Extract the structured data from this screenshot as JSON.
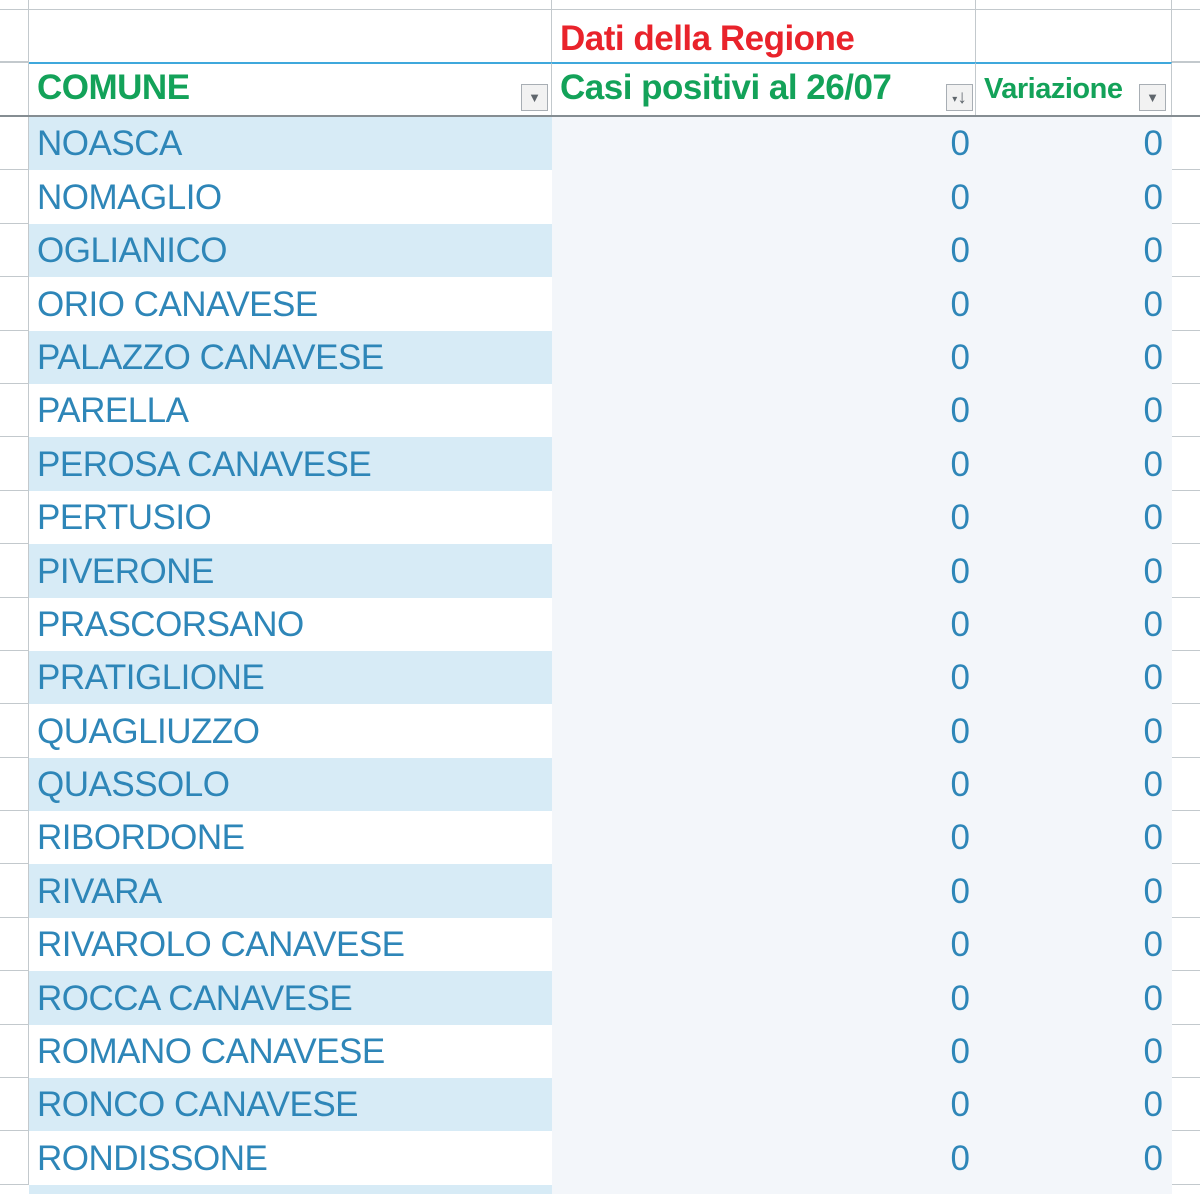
{
  "banner": {
    "label": "Dati della Regione"
  },
  "header": {
    "comune_label": "COMUNE",
    "casi_label": "Casi positivi al 26/07",
    "variazione_label": "Variazione"
  },
  "icons": {
    "dropdown": "▼",
    "sort_triangle": "▾",
    "sort_arrow": "↓"
  },
  "colors": {
    "green": "#13A259",
    "red": "#E9232B",
    "cell-blue": "#2E86B8",
    "band": "#D7EBF6",
    "tint": "#F3F6FA",
    "table-border-blue": "#3FA8DC",
    "gridline": "#C3C9CD",
    "header-border": "#858D92"
  },
  "rows": [
    {
      "comune": "NOASCA",
      "casi": "0",
      "variazione": "0"
    },
    {
      "comune": "NOMAGLIO",
      "casi": "0",
      "variazione": "0"
    },
    {
      "comune": "OGLIANICO",
      "casi": "0",
      "variazione": "0"
    },
    {
      "comune": "ORIO CANAVESE",
      "casi": "0",
      "variazione": "0"
    },
    {
      "comune": "PALAZZO CANAVESE",
      "casi": "0",
      "variazione": "0"
    },
    {
      "comune": "PARELLA",
      "casi": "0",
      "variazione": "0"
    },
    {
      "comune": "PEROSA CANAVESE",
      "casi": "0",
      "variazione": "0"
    },
    {
      "comune": "PERTUSIO",
      "casi": "0",
      "variazione": "0"
    },
    {
      "comune": "PIVERONE",
      "casi": "0",
      "variazione": "0"
    },
    {
      "comune": "PRASCORSANO",
      "casi": "0",
      "variazione": "0"
    },
    {
      "comune": "PRATIGLIONE",
      "casi": "0",
      "variazione": "0"
    },
    {
      "comune": "QUAGLIUZZO",
      "casi": "0",
      "variazione": "0"
    },
    {
      "comune": "QUASSOLO",
      "casi": "0",
      "variazione": "0"
    },
    {
      "comune": "RIBORDONE",
      "casi": "0",
      "variazione": "0"
    },
    {
      "comune": "RIVARA",
      "casi": "0",
      "variazione": "0"
    },
    {
      "comune": "RIVAROLO CANAVESE",
      "casi": "0",
      "variazione": "0"
    },
    {
      "comune": "ROCCA CANAVESE",
      "casi": "0",
      "variazione": "0"
    },
    {
      "comune": "ROMANO CANAVESE",
      "casi": "0",
      "variazione": "0"
    },
    {
      "comune": "RONCO CANAVESE",
      "casi": "0",
      "variazione": "0"
    },
    {
      "comune": "RONDISSONE",
      "casi": "0",
      "variazione": "0"
    }
  ]
}
